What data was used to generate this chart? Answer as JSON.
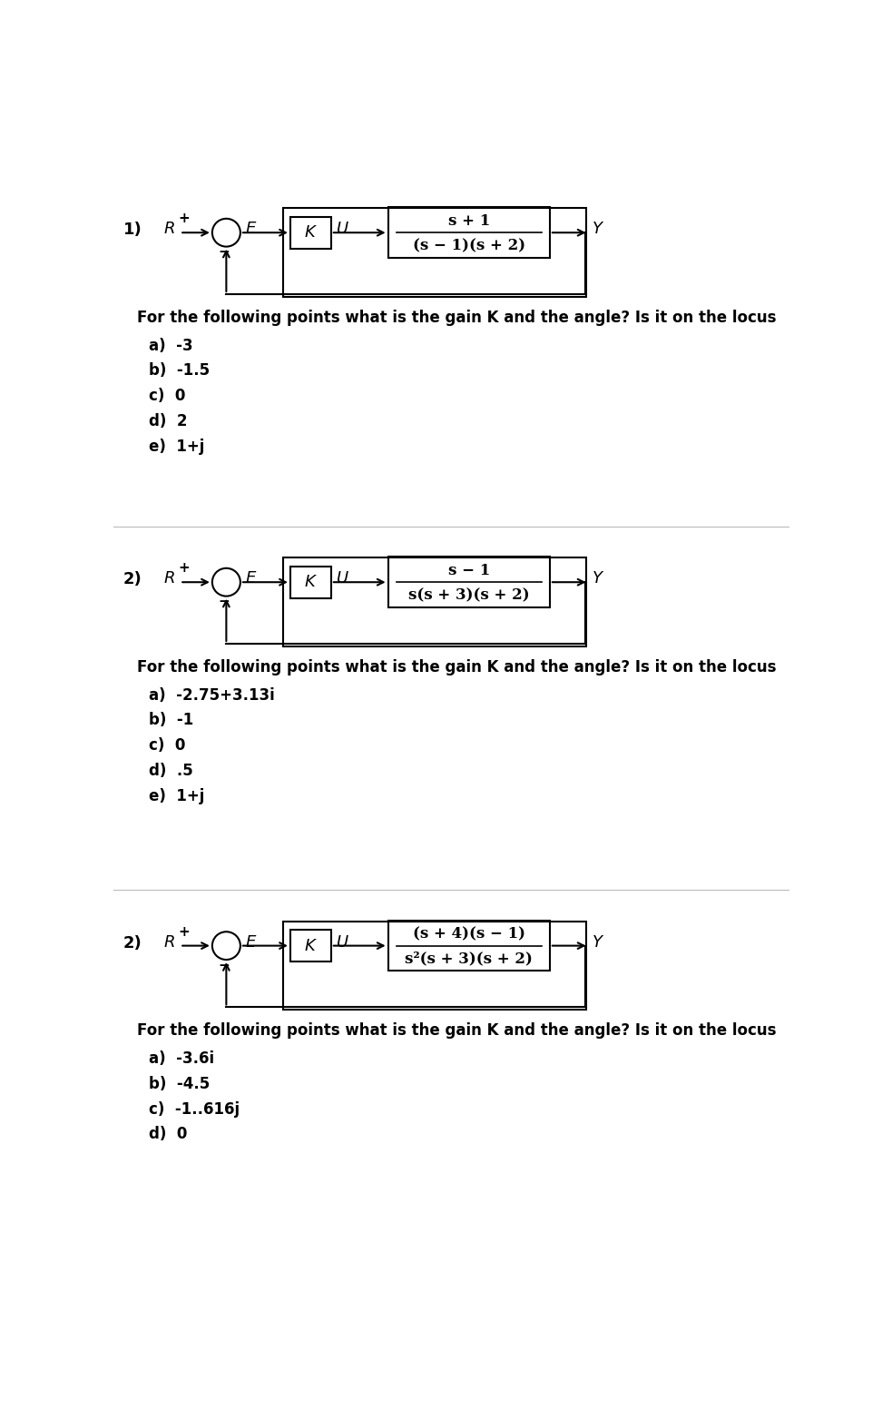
{
  "bg_color": "#ffffff",
  "sections": [
    {
      "number": "1)",
      "tf_num": "s + 1",
      "tf_den": "(s − 1)(s + 2)",
      "question": "For the following points what is the gain K and the angle? Is it on the locus",
      "points": [
        "a)  -3",
        "b)  -1.5",
        "c)  0",
        "d)  2",
        "e)  1+j"
      ]
    },
    {
      "number": "2)",
      "tf_num": "s − 1",
      "tf_den": "s(s + 3)(s + 2)",
      "question": "For the following points what is the gain K and the angle? Is it on the locus",
      "points": [
        "a)  -2.75+3.13i",
        "b)  -1",
        "c)  0",
        "d)  .5",
        "e)  1+j"
      ]
    },
    {
      "number": "2)",
      "tf_num": "(s + 4)(s − 1)",
      "tf_den": "s²(s + 3)(s + 2)",
      "question": "For the following points what is the gain K and the angle? Is it on the locus",
      "points": [
        "a)  -3.6i",
        "b)  -4.5",
        "c)  -1..616j",
        "d)  0"
      ]
    }
  ],
  "divider_color": "#bbbbbb",
  "text_color": "#000000",
  "label_fontsize": 12,
  "question_fontsize": 12,
  "points_fontsize": 12,
  "number_fontsize": 13
}
